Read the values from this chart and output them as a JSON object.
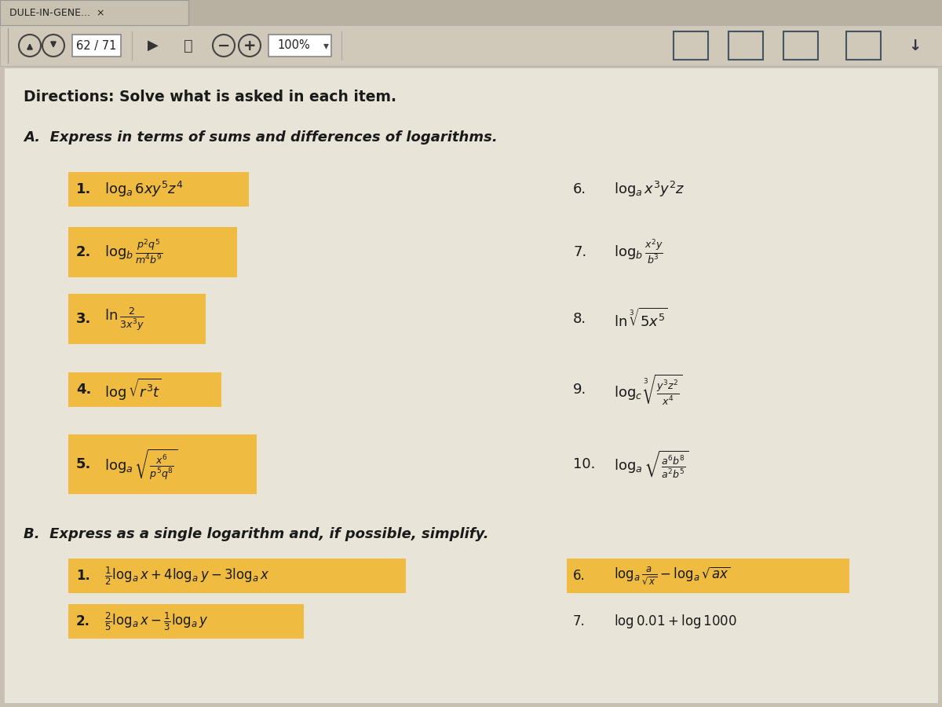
{
  "bg_color": "#c8c0b0",
  "content_bg": "#e8e4d8",
  "toolbar_bg": "#d8d0c0",
  "tab_text": "DULE-IN-GENE...  ×",
  "page_num": "62 / 71",
  "zoom_pct": "100%",
  "directions": "Directions: Solve what is asked in each item.",
  "section_A": "A.  Express in terms of sums and differences of logarithms.",
  "section_B": "B.  Express as a single logarithm and, if possible, simplify.",
  "highlight_color": "#f0b830",
  "text_color": "#1a1a1a",
  "left_items": [
    {
      "num": "1.",
      "expr": "$\\log_a 6xy^5z^4$"
    },
    {
      "num": "2.",
      "expr": "$\\log_b \\dfrac{p^2q^5}{m^4b^9}$"
    },
    {
      "num": "3.",
      "expr": "$\\ln\\dfrac{2}{3x^3y}$"
    },
    {
      "num": "4.",
      "expr": "$\\log\\sqrt{r^3t}$"
    },
    {
      "num": "5.",
      "expr": "$\\log_a\\sqrt{\\dfrac{x^6}{p^5q^8}}$"
    }
  ],
  "right_items": [
    {
      "num": "6.",
      "expr": "$\\log_a x^3y^2z$"
    },
    {
      "num": "7.",
      "expr": "$\\log_b \\dfrac{x^2y}{b^3}$"
    },
    {
      "num": "8.",
      "expr": "$\\ln \\sqrt[3]{5x^5}$"
    },
    {
      "num": "9.",
      "expr": "$\\log_c \\sqrt[3]{\\dfrac{y^3z^2}{x^4}}$"
    },
    {
      "num": "10.",
      "expr": "$\\log_a \\sqrt{\\dfrac{a^6b^8}{a^2b^5}}$"
    }
  ],
  "B_left_items": [
    {
      "num": "1.",
      "expr": "$\\tfrac{1}{2}\\log_a x + 4\\log_a y - 3\\log_a x$"
    },
    {
      "num": "2.",
      "expr": "$\\tfrac{2}{5}\\log_a x - \\tfrac{1}{3}\\log_a y$"
    }
  ],
  "B_right_items": [
    {
      "num": "6.",
      "expr": "$\\log_a \\dfrac{a}{\\sqrt{x}} - \\log_a \\sqrt{ax}$",
      "highlight": true
    },
    {
      "num": "7.",
      "expr": "$\\log 0.01 + \\log 1000$",
      "highlight": false
    }
  ]
}
